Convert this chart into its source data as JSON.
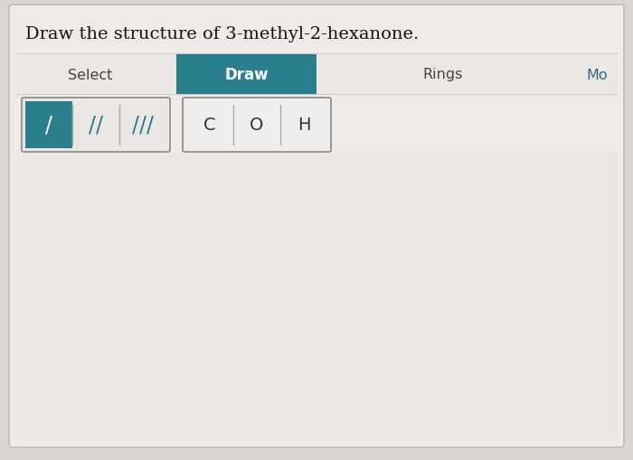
{
  "title": "Draw the structure of 3-methyl-2-hexanone.",
  "title_fontsize": 14,
  "title_color": "#111111",
  "bg_color": "#d8d5d2",
  "panel_bg": "#e8e6e3",
  "toolbar_bg": "#f0eeed",
  "teal_color": "#2a7f8f",
  "teal_text": "#2a7f8f",
  "select_label": "Select",
  "draw_label": "Draw",
  "rings_label": "Rings",
  "more_label": "Mo",
  "bond_labels": [
    "/",
    "//",
    "///"
  ],
  "atom_labels": [
    "C",
    "O",
    "H"
  ],
  "atom_label_color": "#2a7f8f",
  "bond_box_color": "#2a7f8f",
  "atom_box_border": "#888888",
  "atom_box_bg": "#f5f3f1",
  "bond_btn_bg_active": "#2a7f8f",
  "bond_btn_bg_inactive": "#f0eeed",
  "bond_btn_border": "#888888"
}
